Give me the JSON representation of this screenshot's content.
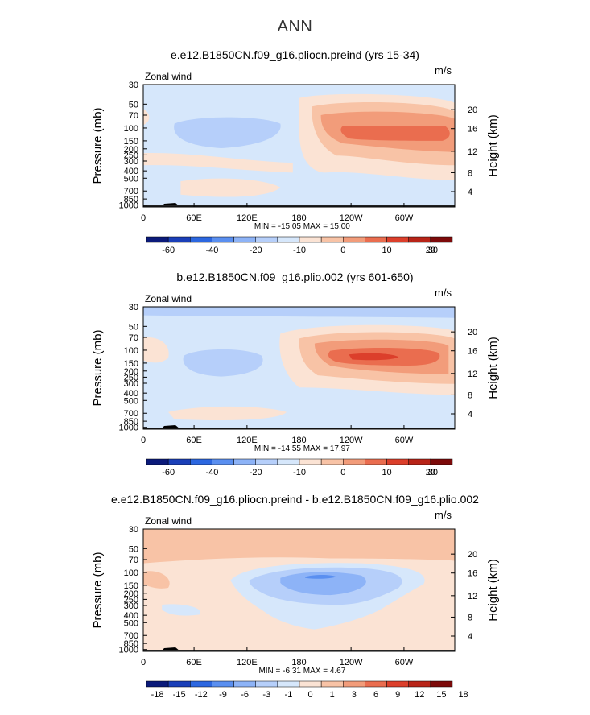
{
  "suptitle": "ANN",
  "chart_data": [
    {
      "type": "contour",
      "title": "e.e12.B1850CN.f09_g16.pliocn.preind (yrs 15-34)",
      "left_label": "Zonal wind",
      "right_label": "m/s",
      "ylabel": "Pressure (mb)",
      "ylabel_right": "Height (km)",
      "pressure_ticks": [
        "30",
        "50",
        "70",
        "100",
        "150",
        "200",
        "250",
        "300",
        "400",
        "500",
        "700",
        "850",
        "1000"
      ],
      "height_ticks": [
        "20",
        "16",
        "12",
        "8",
        "4"
      ],
      "x_ticks": [
        "0",
        "60E",
        "120E",
        "180",
        "120W",
        "60W"
      ],
      "stats": "MIN = -15.05   MAX =  15.00",
      "colorbar": {
        "labels": [
          "-60",
          "-40",
          "-20",
          "-10",
          "0",
          "10",
          "20",
          "30"
        ],
        "levels": [
          -60,
          -50,
          -40,
          -30,
          -20,
          -15,
          -10,
          -5,
          0,
          5,
          10,
          15,
          20,
          25,
          30
        ]
      },
      "min": -15.05,
      "max": 15.0
    },
    {
      "type": "contour",
      "title": "b.e12.B1850CN.f09_g16.plio.002 (yrs 601-650)",
      "left_label": "Zonal wind",
      "right_label": "m/s",
      "ylabel": "Pressure (mb)",
      "ylabel_right": "Height (km)",
      "pressure_ticks": [
        "30",
        "50",
        "70",
        "100",
        "150",
        "200",
        "250",
        "300",
        "400",
        "500",
        "700",
        "850",
        "1000"
      ],
      "height_ticks": [
        "20",
        "16",
        "12",
        "8",
        "4"
      ],
      "x_ticks": [
        "0",
        "60E",
        "120E",
        "180",
        "120W",
        "60W"
      ],
      "stats": "MIN = -14.55   MAX =  17.97",
      "colorbar": {
        "labels": [
          "-60",
          "-40",
          "-20",
          "-10",
          "0",
          "10",
          "20",
          "30"
        ],
        "levels": [
          -60,
          -50,
          -40,
          -30,
          -20,
          -15,
          -10,
          -5,
          0,
          5,
          10,
          15,
          20,
          25,
          30
        ]
      },
      "min": -14.55,
      "max": 17.97
    },
    {
      "type": "contour",
      "title": "e.e12.B1850CN.f09_g16.pliocn.preind - b.e12.B1850CN.f09_g16.plio.002",
      "left_label": "Zonal wind",
      "right_label": "m/s",
      "ylabel": "Pressure (mb)",
      "ylabel_right": "Height (km)",
      "pressure_ticks": [
        "30",
        "50",
        "70",
        "100",
        "150",
        "200",
        "250",
        "300",
        "400",
        "500",
        "700",
        "850",
        "1000"
      ],
      "height_ticks": [
        "20",
        "16",
        "12",
        "8",
        "4"
      ],
      "x_ticks": [
        "0",
        "60E",
        "120E",
        "180",
        "120W",
        "60W"
      ],
      "stats": "MIN =  -6.31   MAX =   4.67",
      "colorbar": {
        "labels": [
          "-18",
          "-15",
          "-12",
          "-9",
          "-6",
          "-3",
          "-1",
          "0",
          "1",
          "3",
          "6",
          "9",
          "12",
          "15",
          "18"
        ],
        "levels": [
          -18,
          -15,
          -12,
          -9,
          -6,
          -3,
          -1,
          0,
          1,
          3,
          6,
          9,
          12,
          15,
          18
        ]
      },
      "min": -6.31,
      "max": 4.67
    }
  ],
  "colors": {
    "ramp": [
      "#0b1a7a",
      "#1a3fb8",
      "#2c67e0",
      "#5a8ff0",
      "#8db3f7",
      "#b6cffa",
      "#d6e7fb",
      "#fbe3d4",
      "#f8c3a6",
      "#f29c7a",
      "#ea6d4f",
      "#dc3f2b",
      "#b82418",
      "#7d0a0a"
    ]
  }
}
